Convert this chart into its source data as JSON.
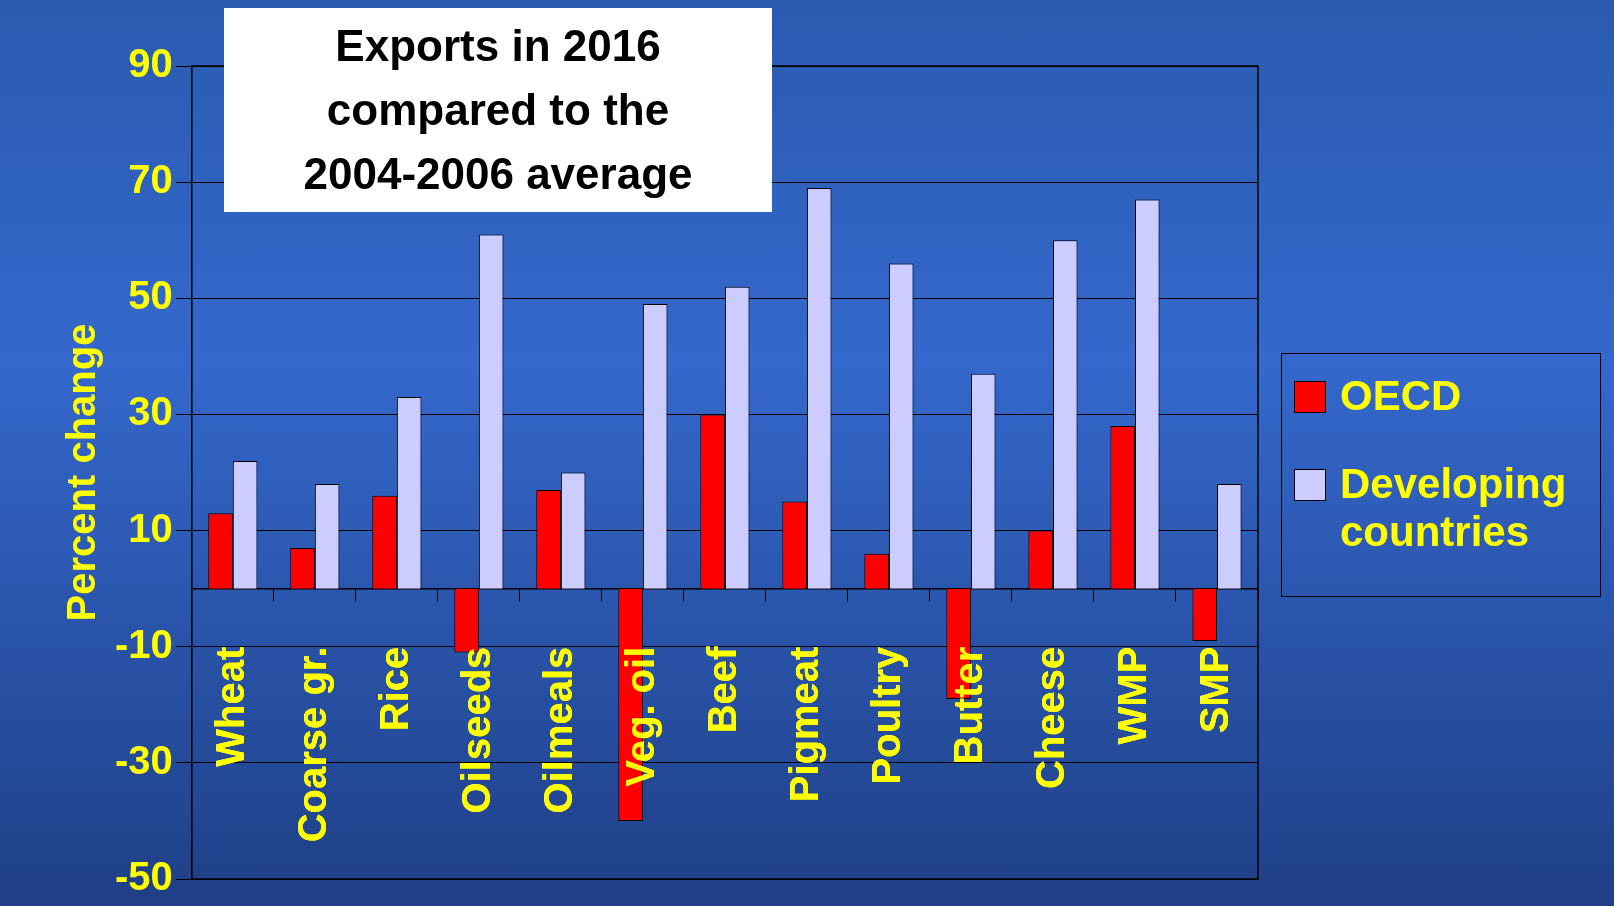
{
  "chart_data": {
    "type": "bar",
    "title": "Exports in 2016 compared to the 2004-2006 average",
    "ylabel": "Percent change",
    "categories": [
      "Wheat",
      "Coarse gr.",
      "Rice",
      "Oilseeds",
      "Oilmeals",
      "Veg. oil",
      "Beef",
      "Pigmeat",
      "Poultry",
      "Butter",
      "Cheese",
      "WMP",
      "SMP"
    ],
    "series": [
      {
        "name": "OECD",
        "color": "#ff0000",
        "values": [
          13,
          7,
          16,
          -11,
          17,
          -40,
          30,
          15,
          6,
          -19,
          10,
          28,
          -9
        ]
      },
      {
        "name": "Developing countries",
        "color": "#ccccff",
        "values": [
          22,
          18,
          33,
          61,
          20,
          49,
          52,
          69,
          56,
          37,
          60,
          67,
          18
        ]
      }
    ],
    "ylim": [
      -50,
      90
    ],
    "yticks": [
      -50,
      -30,
      -10,
      10,
      30,
      50,
      70,
      90
    ],
    "grid": "y",
    "legend": "right"
  }
}
